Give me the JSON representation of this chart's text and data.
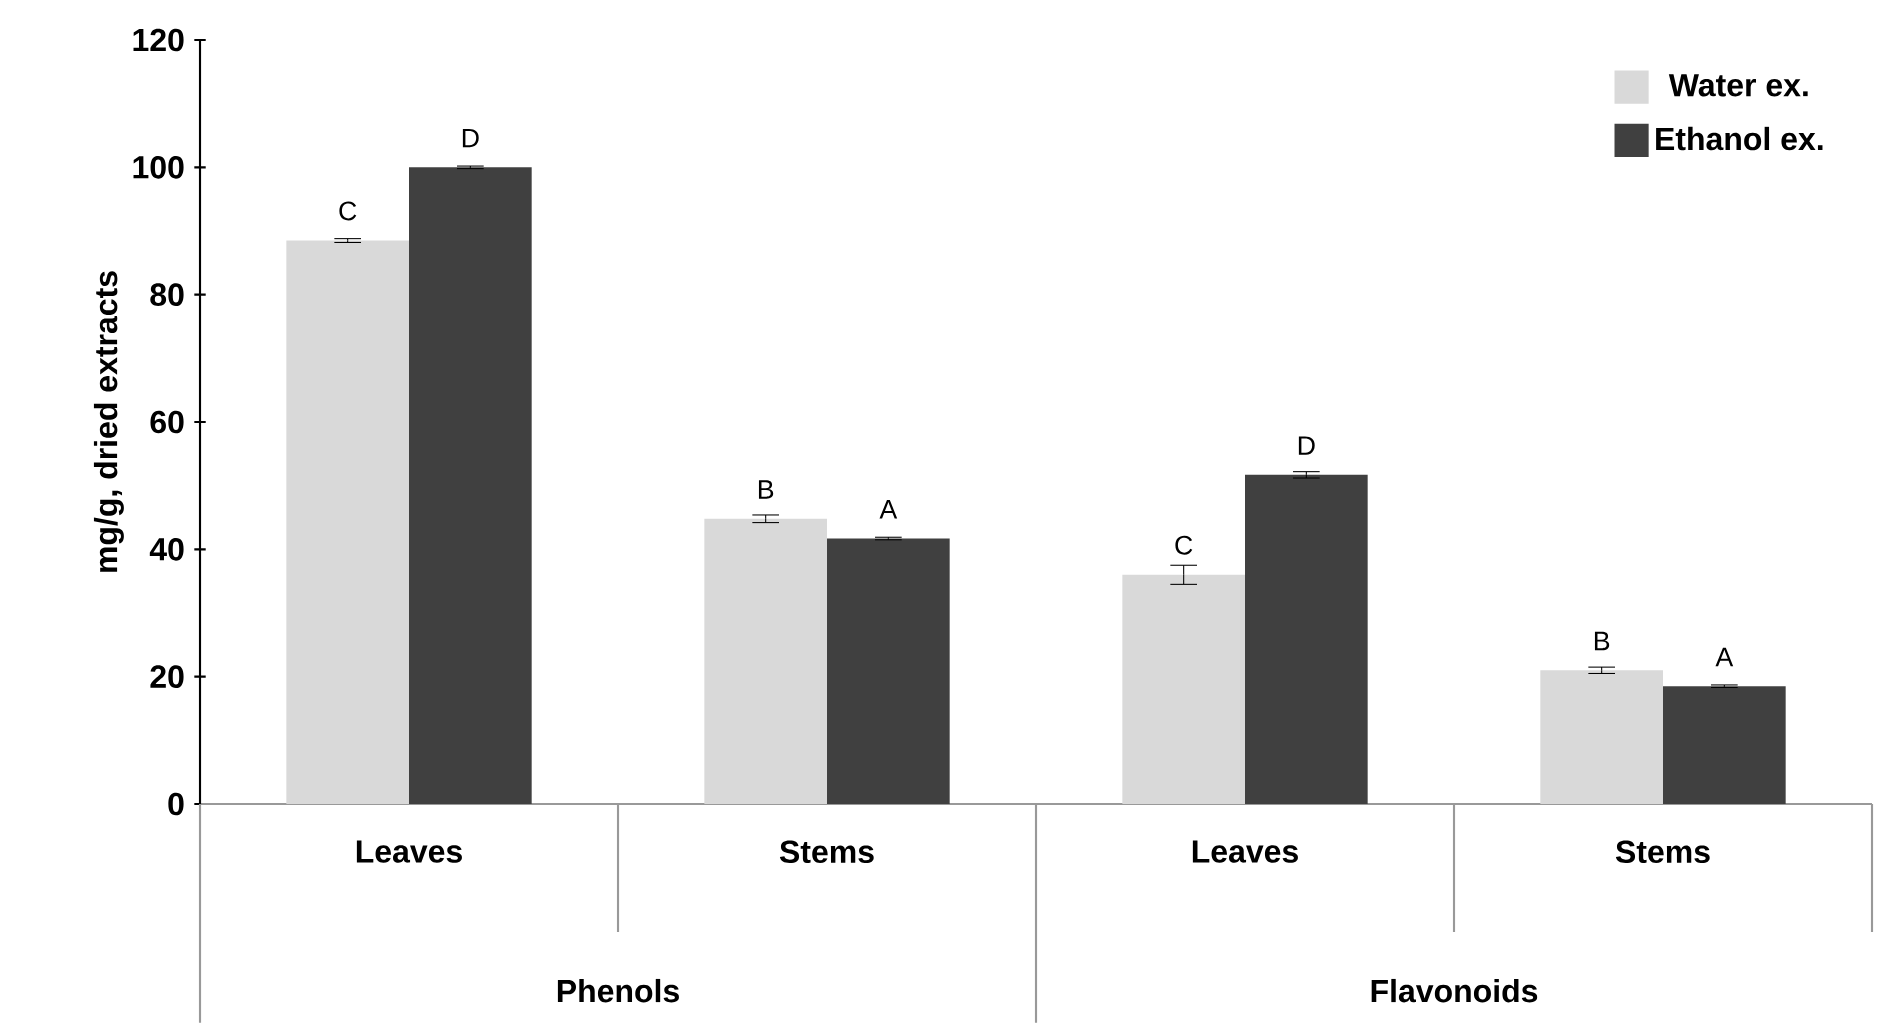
{
  "chart_data": {
    "type": "bar",
    "ylabel": "mg/g, dried extracts",
    "categories": [
      "Leaves",
      "Stems",
      "Leaves",
      "Stems"
    ],
    "series": [
      {
        "name": "Water ex.",
        "color": "#d9d9d9",
        "values": [
          88.5,
          44.8,
          36.0,
          21.0
        ],
        "errors": [
          0.3,
          0.6,
          1.5,
          0.5
        ],
        "value_labels": [
          "C",
          "B",
          "C",
          "B"
        ]
      },
      {
        "name": "Ethanol ex.",
        "color": "#404040",
        "values": [
          100,
          41.7,
          51.7,
          18.5
        ],
        "errors": [
          0.2,
          0.2,
          0.5,
          0.2
        ],
        "value_labels": [
          "D",
          "A",
          "D",
          "A"
        ]
      }
    ],
    "annotations": [
      "Phenols",
      "Flavonoids"
    ],
    "ylim": [
      0,
      120
    ],
    "yticks": [
      0,
      20,
      40,
      60,
      80,
      100,
      120
    ],
    "grid": false,
    "legend": "top right"
  }
}
